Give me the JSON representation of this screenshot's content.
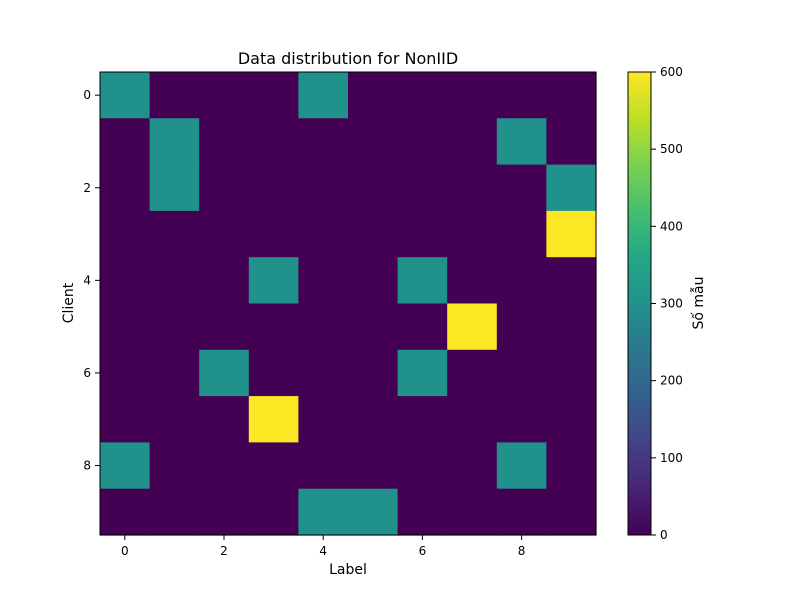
{
  "chart_data": {
    "type": "heatmap",
    "title": "Data distribution for NonIID",
    "xlabel": "Label",
    "ylabel": "Client",
    "x_ticks": [
      "0",
      "2",
      "4",
      "6",
      "8"
    ],
    "y_ticks": [
      "0",
      "2",
      "4",
      "6",
      "8"
    ],
    "rows": 10,
    "cols": 10,
    "values": [
      [
        300,
        0,
        0,
        0,
        300,
        0,
        0,
        0,
        0,
        0
      ],
      [
        0,
        300,
        0,
        0,
        0,
        0,
        0,
        0,
        300,
        0
      ],
      [
        0,
        300,
        0,
        0,
        0,
        0,
        0,
        0,
        0,
        300
      ],
      [
        0,
        0,
        0,
        0,
        0,
        0,
        0,
        0,
        0,
        600
      ],
      [
        0,
        0,
        0,
        300,
        0,
        0,
        300,
        0,
        0,
        0
      ],
      [
        0,
        0,
        0,
        0,
        0,
        0,
        0,
        600,
        0,
        0
      ],
      [
        0,
        0,
        300,
        0,
        0,
        0,
        300,
        0,
        0,
        0
      ],
      [
        0,
        0,
        0,
        600,
        0,
        0,
        0,
        0,
        0,
        0
      ],
      [
        300,
        0,
        0,
        0,
        0,
        0,
        0,
        0,
        300,
        0
      ],
      [
        0,
        0,
        0,
        0,
        300,
        300,
        0,
        0,
        0,
        0
      ]
    ],
    "colorbar": {
      "label": "Số mẫu",
      "min": 0,
      "max": 600,
      "ticks": [
        "0",
        "100",
        "200",
        "300",
        "400",
        "500",
        "600"
      ],
      "colormap": "viridis"
    }
  }
}
